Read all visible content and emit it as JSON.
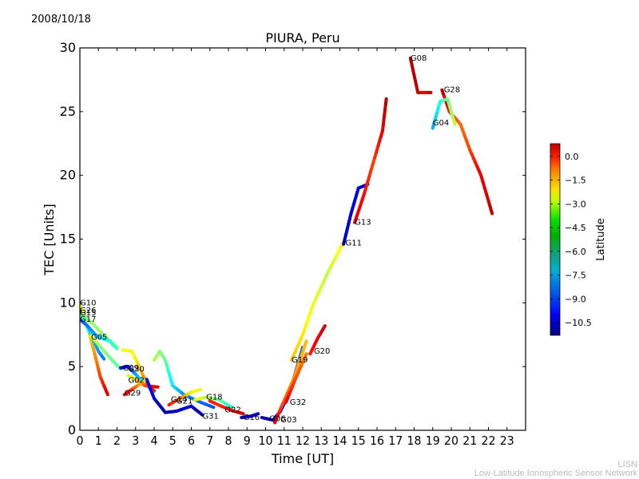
{
  "header": {
    "date": "2008/10/18"
  },
  "footer": {
    "org_short": "LISN",
    "org_long": "Low-Latitude Ionospheric Sensor Network"
  },
  "chart_data": {
    "type": "scatter",
    "title": "PIURA, Peru",
    "xlabel": "Time [UT]",
    "ylabel": "TEC [Units]",
    "xlim": [
      0,
      24
    ],
    "ylim": [
      0,
      30
    ],
    "xticks": [
      "0",
      "1",
      "2",
      "3",
      "4",
      "5",
      "6",
      "7",
      "8",
      "9",
      "10",
      "11",
      "12",
      "13",
      "14",
      "15",
      "16",
      "17",
      "18",
      "19",
      "20",
      "21",
      "22",
      "23"
    ],
    "yticks": [
      "0",
      "5",
      "10",
      "15",
      "20",
      "25",
      "30"
    ],
    "grid": false,
    "colorbar": {
      "label": "Latitude",
      "range": [
        -11.3,
        0.8
      ],
      "ticks": [
        "0.0",
        "−1.5",
        "−3.0",
        "−4.5",
        "−6.0",
        "−7.5",
        "−9.0",
        "−10.5"
      ],
      "tick_values": [
        0.0,
        -1.5,
        -3.0,
        -4.5,
        -6.0,
        -7.5,
        -9.0,
        -10.5
      ],
      "colormap": "jet"
    },
    "series": [
      {
        "name": "G10",
        "label_at": [
          0.0,
          10.0
        ],
        "points": [
          [
            0.0,
            9.8,
            -4.0
          ],
          [
            0.4,
            8.2,
            -3.5
          ],
          [
            0.8,
            6.0,
            -2.5
          ],
          [
            1.1,
            4.2,
            -1.5
          ],
          [
            1.5,
            2.8,
            -0.3
          ]
        ]
      },
      {
        "name": "G26",
        "label_at": [
          0.0,
          9.4
        ],
        "points": [
          [
            0.0,
            9.3,
            -6.5
          ],
          [
            0.5,
            7.8,
            -7.0
          ],
          [
            1.0,
            6.2,
            -8.0
          ],
          [
            1.3,
            5.6,
            -8.3
          ]
        ]
      },
      {
        "name": "G15",
        "label_at": [
          0.0,
          9.2
        ],
        "points": [
          [
            0.0,
            9.2,
            -5.5
          ],
          [
            0.6,
            8.5,
            -5.0
          ],
          [
            1.2,
            7.6,
            -5.0
          ],
          [
            2.0,
            6.5,
            -5.3
          ]
        ]
      },
      {
        "name": "G17",
        "label_at": [
          0.0,
          8.7
        ],
        "points": [
          [
            0.0,
            8.7,
            -8.8
          ],
          [
            0.4,
            8.2,
            -8.4
          ],
          [
            0.9,
            7.4,
            -7.8
          ],
          [
            1.6,
            7.0,
            -6.4
          ],
          [
            2.0,
            6.4,
            -6.0
          ]
        ]
      },
      {
        "name": "G05",
        "label_at": [
          0.6,
          7.3
        ],
        "points": [
          [
            0.6,
            7.4,
            -4.0
          ],
          [
            1.2,
            6.4,
            -5.0
          ],
          [
            1.8,
            5.4,
            -5.5
          ],
          [
            2.2,
            4.8,
            -5.8
          ]
        ]
      },
      {
        "name": "G09",
        "label_at": [
          2.3,
          4.9
        ],
        "points": [
          [
            2.2,
            4.9,
            -10.6
          ],
          [
            2.6,
            5.0,
            -9.8
          ],
          [
            3.0,
            4.4,
            -8.0
          ],
          [
            3.5,
            3.6,
            -6.5
          ],
          [
            4.0,
            3.0,
            -5.0
          ]
        ]
      },
      {
        "name": "G30",
        "label_at": [
          2.6,
          4.8
        ],
        "points": [
          [
            2.3,
            6.3,
            -3.8
          ],
          [
            2.8,
            6.2,
            -4.0
          ],
          [
            3.2,
            5.0,
            -3.2
          ],
          [
            3.6,
            3.6,
            -2.0
          ],
          [
            4.0,
            3.1,
            -1.0
          ]
        ]
      },
      {
        "name": "G02",
        "label_at": [
          2.6,
          3.9
        ],
        "points": [
          [
            2.6,
            4.3,
            -4.8
          ],
          [
            3.0,
            4.0,
            -3.2
          ],
          [
            3.5,
            3.5,
            -1.8
          ],
          [
            4.2,
            3.4,
            -0.3
          ]
        ]
      },
      {
        "name": "G29",
        "label_at": [
          2.4,
          2.9
        ],
        "points": [
          [
            2.4,
            2.8,
            -0.3
          ],
          [
            2.8,
            3.2,
            -1.0
          ],
          [
            3.2,
            3.6,
            -2.5
          ],
          [
            3.6,
            4.0,
            -3.5
          ]
        ]
      },
      {
        "name": "G14",
        "label_at": [
          4.9,
          2.4
        ],
        "points": [
          [
            4.0,
            5.5,
            -4.5
          ],
          [
            4.3,
            6.2,
            -5.0
          ],
          [
            4.6,
            5.5,
            -5.5
          ],
          [
            5.0,
            3.5,
            -7.0
          ],
          [
            5.6,
            2.8,
            -8.0
          ],
          [
            6.5,
            2.2,
            -8.5
          ],
          [
            7.2,
            1.8,
            -8.8
          ]
        ]
      },
      {
        "name": "G21",
        "label_at": [
          5.2,
          2.3
        ],
        "points": [
          [
            4.8,
            2.0,
            -0.8
          ],
          [
            5.4,
            2.5,
            -2.0
          ],
          [
            6.0,
            3.0,
            -3.5
          ],
          [
            6.5,
            3.2,
            -4.0
          ]
        ]
      },
      {
        "name": "G18",
        "label_at": [
          6.8,
          2.6
        ],
        "points": [
          [
            6.2,
            2.4,
            -3.5
          ],
          [
            6.8,
            2.6,
            -4.5
          ],
          [
            7.5,
            2.4,
            -5.5
          ],
          [
            8.2,
            1.8,
            -6.5
          ]
        ]
      },
      {
        "name": "G31",
        "label_at": [
          6.6,
          1.1
        ],
        "points": [
          [
            3.6,
            4.0,
            -9.5
          ],
          [
            4.0,
            2.5,
            -10.2
          ],
          [
            4.6,
            1.4,
            -10.8
          ],
          [
            5.2,
            1.5,
            -10.5
          ],
          [
            6.0,
            1.9,
            -10.4
          ],
          [
            6.6,
            1.2,
            -10.8
          ]
        ]
      },
      {
        "name": "G22",
        "label_at": [
          7.8,
          1.6
        ],
        "points": [
          [
            7.0,
            2.3,
            -1.0
          ],
          [
            7.6,
            1.9,
            -1.2
          ],
          [
            8.3,
            1.5,
            -0.6
          ],
          [
            8.8,
            1.3,
            -0.3
          ]
        ]
      },
      {
        "name": "G16",
        "label_at": [
          8.8,
          1.0
        ],
        "points": [
          [
            8.7,
            1.0,
            -10.6
          ],
          [
            9.2,
            1.1,
            -10.4
          ],
          [
            9.6,
            1.3,
            -10.0
          ]
        ]
      },
      {
        "name": "G06",
        "label_at": [
          10.2,
          0.9
        ],
        "points": [
          [
            9.8,
            1.0,
            -10.6
          ],
          [
            10.4,
            0.8,
            -10.8
          ],
          [
            10.8,
            1.5,
            -10.2
          ],
          [
            11.3,
            3.0,
            -9.0
          ],
          [
            12.0,
            6.5,
            -8.5
          ]
        ]
      },
      {
        "name": "G03",
        "label_at": [
          10.8,
          0.8
        ],
        "points": [
          [
            10.5,
            0.6,
            -0.3
          ],
          [
            10.9,
            2.0,
            -1.5
          ],
          [
            11.5,
            4.0,
            -2.5
          ],
          [
            12.2,
            7.0,
            -3.0
          ]
        ]
      },
      {
        "name": "G32",
        "label_at": [
          11.3,
          2.2
        ],
        "points": [
          [
            11.1,
            2.2,
            -0.5
          ],
          [
            11.6,
            4.0,
            -1.5
          ],
          [
            12.2,
            6.0,
            -2.2
          ]
        ]
      },
      {
        "name": "G19",
        "label_at": [
          11.4,
          5.5
        ],
        "points": [
          [
            11.4,
            5.5,
            -3.0
          ],
          [
            12.0,
            7.5,
            -3.5
          ],
          [
            12.6,
            10.0,
            -4.0
          ],
          [
            13.4,
            12.5,
            -4.5
          ],
          [
            14.2,
            14.8,
            -3.5
          ]
        ]
      },
      {
        "name": "G20",
        "label_at": [
          12.6,
          6.2
        ],
        "points": [
          [
            12.4,
            6.0,
            -1.0
          ],
          [
            12.8,
            7.2,
            -0.6
          ],
          [
            13.2,
            8.2,
            -0.2
          ]
        ]
      },
      {
        "name": "G11",
        "label_at": [
          14.3,
          14.7
        ],
        "points": [
          [
            14.2,
            14.6,
            -10.5
          ],
          [
            14.6,
            17.0,
            -10.2
          ],
          [
            15.0,
            19.0,
            -10.0
          ],
          [
            15.5,
            19.3,
            -10.8
          ]
        ]
      },
      {
        "name": "G13",
        "label_at": [
          14.8,
          16.3
        ],
        "points": [
          [
            14.8,
            16.3,
            -0.3
          ],
          [
            15.3,
            18.5,
            -0.8
          ],
          [
            15.8,
            21.0,
            -1.5
          ],
          [
            16.3,
            23.5,
            -0.5
          ],
          [
            16.5,
            26.0,
            0.2
          ]
        ]
      },
      {
        "name": "G08",
        "label_at": [
          17.8,
          29.2
        ],
        "points": [
          [
            17.8,
            29.2,
            0.2
          ],
          [
            18.2,
            26.5,
            0.0
          ],
          [
            18.6,
            26.5,
            -0.5
          ],
          [
            18.9,
            26.5,
            0.0
          ]
        ]
      },
      {
        "name": "G28",
        "label_at": [
          19.6,
          26.7
        ],
        "points": [
          [
            19.5,
            26.7,
            0.3
          ],
          [
            19.9,
            25.0,
            -1.0
          ],
          [
            20.5,
            24.0,
            -2.0
          ],
          [
            21.0,
            22.0,
            -1.5
          ],
          [
            21.6,
            20.0,
            -0.5
          ],
          [
            22.2,
            17.0,
            0.0
          ]
        ]
      },
      {
        "name": "G04",
        "label_at": [
          19.0,
          24.1
        ],
        "points": [
          [
            19.0,
            23.7,
            -7.8
          ],
          [
            19.4,
            25.8,
            -6.5
          ],
          [
            19.8,
            26.0,
            -5.5
          ],
          [
            20.2,
            24.0,
            -4.5
          ]
        ]
      }
    ],
    "background_curves_note_count": 0
  }
}
